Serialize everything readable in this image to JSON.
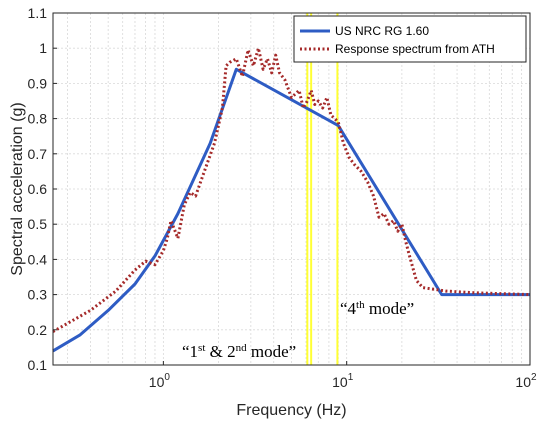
{
  "chart_data": {
    "type": "line",
    "xscale": "log",
    "xlim": [
      0.25,
      100
    ],
    "ylim": [
      0.1,
      1.1
    ],
    "grid": true,
    "xlabel": "Frequency (Hz)",
    "ylabel": "Spectral acceleration (g)",
    "yticks": [
      "0.1",
      "0.2",
      "0.3",
      "0.4",
      "0.5",
      "0.6",
      "0.7",
      "0.8",
      "0.9",
      "1",
      "1.1"
    ],
    "xticks": [
      {
        "base": "10",
        "exp": "0"
      },
      {
        "base": "10",
        "exp": "1"
      },
      {
        "base": "10",
        "exp": "2"
      }
    ],
    "legend_position": "top-right",
    "series": [
      {
        "name": "US NRC RG 1.60",
        "color": "#2e5cc4",
        "style": "solid",
        "x": [
          0.25,
          0.35,
          0.5,
          0.7,
          0.9,
          1.2,
          1.8,
          2.5,
          9.0,
          33,
          100
        ],
        "y": [
          0.14,
          0.185,
          0.255,
          0.33,
          0.41,
          0.53,
          0.73,
          0.94,
          0.78,
          0.3,
          0.3
        ]
      },
      {
        "name": "Response spectrum from ATH",
        "color": "#a52a2a",
        "style": "dotted",
        "x": [
          0.25,
          0.4,
          0.55,
          0.7,
          0.8,
          0.9,
          1.0,
          1.05,
          1.1,
          1.2,
          1.3,
          1.4,
          1.5,
          1.7,
          1.9,
          2.1,
          2.2,
          2.3,
          2.5,
          2.7,
          2.9,
          3.1,
          3.3,
          3.5,
          3.7,
          3.9,
          4.1,
          4.3,
          4.6,
          5.0,
          5.5,
          5.8,
          6.1,
          6.4,
          6.7,
          7.0,
          7.4,
          7.8,
          8.2,
          8.6,
          9.0,
          9.6,
          10.3,
          11,
          12,
          13,
          14,
          15,
          16,
          17,
          18,
          19,
          20,
          21,
          22,
          24,
          26,
          30,
          35,
          50,
          100
        ],
        "y": [
          0.195,
          0.255,
          0.31,
          0.37,
          0.395,
          0.385,
          0.425,
          0.46,
          0.51,
          0.46,
          0.555,
          0.59,
          0.58,
          0.66,
          0.73,
          0.83,
          0.95,
          0.96,
          0.97,
          0.92,
          0.995,
          0.95,
          1.0,
          0.94,
          0.97,
          0.93,
          0.98,
          0.93,
          0.91,
          0.86,
          0.88,
          0.83,
          0.85,
          0.88,
          0.84,
          0.85,
          0.83,
          0.86,
          0.81,
          0.8,
          0.79,
          0.73,
          0.69,
          0.67,
          0.65,
          0.62,
          0.58,
          0.52,
          0.53,
          0.5,
          0.51,
          0.48,
          0.5,
          0.45,
          0.41,
          0.34,
          0.32,
          0.315,
          0.31,
          0.305,
          0.3
        ]
      }
    ],
    "mode_lines": [
      {
        "x": 6.1,
        "color": "#ffff33"
      },
      {
        "x": 6.4,
        "color": "#ffff33"
      },
      {
        "x": 8.9,
        "color": "#ffff33"
      }
    ],
    "annotations": [
      {
        "text": "“1",
        "sup": "st",
        "text2": " & 2",
        "sup2": "nd",
        "text3": " mode”"
      },
      {
        "text": "“4",
        "sup": "th",
        "text2": " mode”",
        "sup2": "",
        "text3": ""
      }
    ]
  }
}
